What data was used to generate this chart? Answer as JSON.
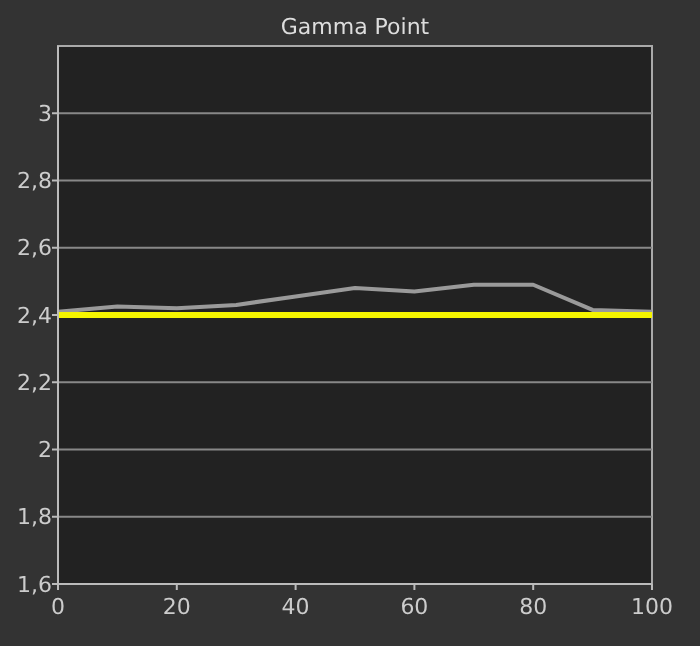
{
  "chart_data": {
    "type": "line",
    "title": "Gamma Point",
    "x": [
      0,
      10,
      20,
      30,
      40,
      50,
      60,
      70,
      80,
      90,
      100
    ],
    "series": [
      {
        "color": "#9a9a9a",
        "values": [
          2.41,
          2.425,
          2.42,
          2.43,
          2.455,
          2.48,
          2.47,
          2.49,
          2.49,
          2.415,
          2.41
        ]
      }
    ],
    "xlim": [
      0,
      100
    ],
    "xticks": [
      0,
      20,
      40,
      60,
      80,
      100
    ],
    "ylim": [
      1.6,
      3.2
    ],
    "yticks": [
      {
        "value": 1.6,
        "label": "1,6"
      },
      {
        "value": 1.8,
        "label": "1,8"
      },
      2,
      {
        "value": 2.2,
        "label": "2,2"
      },
      {
        "value": 2.4,
        "label": "2,4"
      },
      {
        "value": 2.6,
        "label": "2,6"
      },
      {
        "value": 2.8,
        "label": "2,8"
      },
      3
    ],
    "ref_lines": [
      {
        "axis": "y",
        "value": 2.4,
        "color": "#f5f500"
      }
    ],
    "grid": "y",
    "marker": "none",
    "line_style": "solid"
  }
}
